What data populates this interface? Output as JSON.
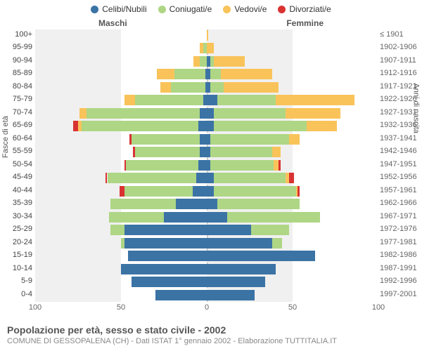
{
  "legend": [
    {
      "label": "Celibi/Nubili",
      "color": "#3b73a5"
    },
    {
      "label": "Coniugati/e",
      "color": "#aed685"
    },
    {
      "label": "Vedovi/e",
      "color": "#f9c35a"
    },
    {
      "label": "Divorziati/e",
      "color": "#d93232"
    }
  ],
  "headers": {
    "male": "Maschi",
    "female": "Femmine"
  },
  "axis_titles": {
    "left": "Fasce di età",
    "right": "Anni di nascita"
  },
  "xaxis": {
    "min": -100,
    "max": 100,
    "ticks": [
      -100,
      -50,
      0,
      50,
      100
    ],
    "labels": [
      "100",
      "50",
      "0",
      "50",
      "100"
    ]
  },
  "grid_color": "#f0f0f0",
  "title": "Popolazione per età, sesso e stato civile - 2002",
  "subtitle": "COMUNE DI GESSOPALENA (CH) - Dati ISTAT 1° gennaio 2002 - Elaborazione TUTTITALIA.IT",
  "rows": [
    {
      "age": "0-4",
      "year": "1997-2001",
      "m": {
        "c": 30,
        "co": 0,
        "v": 0,
        "d": 0
      },
      "f": {
        "c": 28,
        "co": 0,
        "v": 0,
        "d": 0
      }
    },
    {
      "age": "5-9",
      "year": "1992-1996",
      "m": {
        "c": 44,
        "co": 0,
        "v": 0,
        "d": 0
      },
      "f": {
        "c": 34,
        "co": 0,
        "v": 0,
        "d": 0
      }
    },
    {
      "age": "10-14",
      "year": "1987-1991",
      "m": {
        "c": 50,
        "co": 0,
        "v": 0,
        "d": 0
      },
      "f": {
        "c": 40,
        "co": 0,
        "v": 0,
        "d": 0
      }
    },
    {
      "age": "15-19",
      "year": "1982-1986",
      "m": {
        "c": 46,
        "co": 0,
        "v": 0,
        "d": 0
      },
      "f": {
        "c": 63,
        "co": 0,
        "v": 0,
        "d": 0
      }
    },
    {
      "age": "20-24",
      "year": "1977-1981",
      "m": {
        "c": 48,
        "co": 2,
        "v": 0,
        "d": 0
      },
      "f": {
        "c": 38,
        "co": 6,
        "v": 0,
        "d": 0
      }
    },
    {
      "age": "25-29",
      "year": "1972-1976",
      "m": {
        "c": 48,
        "co": 8,
        "v": 0,
        "d": 0
      },
      "f": {
        "c": 26,
        "co": 22,
        "v": 0,
        "d": 0
      }
    },
    {
      "age": "30-34",
      "year": "1967-1971",
      "m": {
        "c": 25,
        "co": 32,
        "v": 0,
        "d": 0
      },
      "f": {
        "c": 12,
        "co": 54,
        "v": 0,
        "d": 0
      }
    },
    {
      "age": "35-39",
      "year": "1962-1966",
      "m": {
        "c": 18,
        "co": 38,
        "v": 0,
        "d": 0
      },
      "f": {
        "c": 6,
        "co": 48,
        "v": 0,
        "d": 0
      }
    },
    {
      "age": "40-44",
      "year": "1957-1961",
      "m": {
        "c": 8,
        "co": 40,
        "v": 0,
        "d": 3
      },
      "f": {
        "c": 4,
        "co": 48,
        "v": 1,
        "d": 1
      }
    },
    {
      "age": "45-49",
      "year": "1952-1956",
      "m": {
        "c": 6,
        "co": 52,
        "v": 0,
        "d": 1
      },
      "f": {
        "c": 4,
        "co": 42,
        "v": 2,
        "d": 3
      }
    },
    {
      "age": "50-54",
      "year": "1947-1951",
      "m": {
        "c": 5,
        "co": 42,
        "v": 0,
        "d": 1
      },
      "f": {
        "c": 2,
        "co": 37,
        "v": 3,
        "d": 1
      }
    },
    {
      "age": "55-59",
      "year": "1942-1946",
      "m": {
        "c": 4,
        "co": 38,
        "v": 0,
        "d": 1
      },
      "f": {
        "c": 2,
        "co": 36,
        "v": 5,
        "d": 0
      }
    },
    {
      "age": "60-64",
      "year": "1937-1941",
      "m": {
        "c": 4,
        "co": 40,
        "v": 0,
        "d": 1
      },
      "f": {
        "c": 2,
        "co": 46,
        "v": 6,
        "d": 0
      }
    },
    {
      "age": "65-69",
      "year": "1932-1936",
      "m": {
        "c": 5,
        "co": 68,
        "v": 2,
        "d": 3
      },
      "f": {
        "c": 4,
        "co": 54,
        "v": 18,
        "d": 0
      }
    },
    {
      "age": "70-74",
      "year": "1927-1931",
      "m": {
        "c": 4,
        "co": 66,
        "v": 4,
        "d": 0
      },
      "f": {
        "c": 4,
        "co": 42,
        "v": 32,
        "d": 0
      }
    },
    {
      "age": "75-79",
      "year": "1922-1926",
      "m": {
        "c": 2,
        "co": 40,
        "v": 6,
        "d": 0
      },
      "f": {
        "c": 6,
        "co": 34,
        "v": 46,
        "d": 0
      }
    },
    {
      "age": "80-84",
      "year": "1917-1921",
      "m": {
        "c": 1,
        "co": 20,
        "v": 6,
        "d": 0
      },
      "f": {
        "c": 2,
        "co": 8,
        "v": 32,
        "d": 0
      }
    },
    {
      "age": "85-89",
      "year": "1912-1916",
      "m": {
        "c": 1,
        "co": 18,
        "v": 10,
        "d": 0
      },
      "f": {
        "c": 2,
        "co": 6,
        "v": 30,
        "d": 0
      }
    },
    {
      "age": "90-94",
      "year": "1907-1911",
      "m": {
        "c": 0,
        "co": 4,
        "v": 4,
        "d": 0
      },
      "f": {
        "c": 2,
        "co": 2,
        "v": 18,
        "d": 0
      }
    },
    {
      "age": "95-99",
      "year": "1902-1906",
      "m": {
        "c": 0,
        "co": 2,
        "v": 2,
        "d": 0
      },
      "f": {
        "c": 0,
        "co": 0,
        "v": 4,
        "d": 0
      }
    },
    {
      "age": "100+",
      "year": "≤ 1901",
      "m": {
        "c": 0,
        "co": 0,
        "v": 0,
        "d": 0
      },
      "f": {
        "c": 0,
        "co": 0,
        "v": 1,
        "d": 0
      }
    }
  ]
}
